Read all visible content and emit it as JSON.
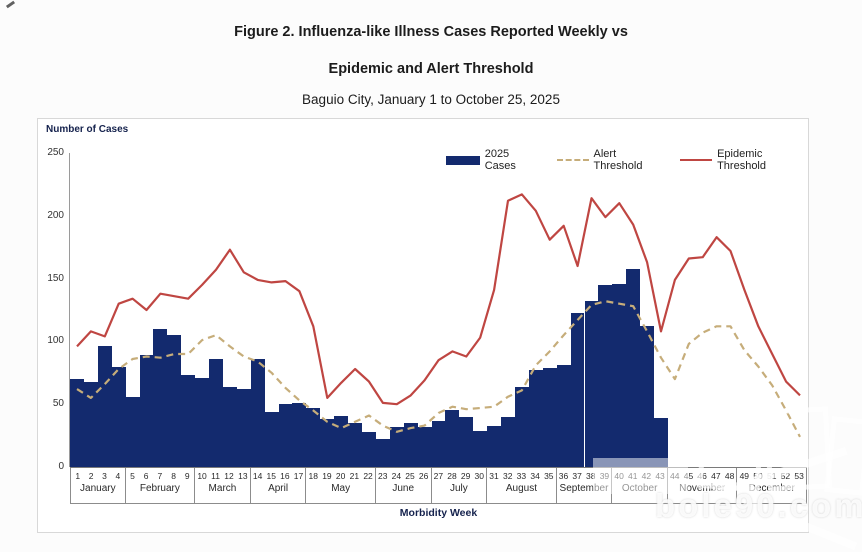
{
  "title": {
    "line1": "Figure 2. Influenza-like Illness Cases Reported Weekly vs",
    "line2": "Epidemic and Alert Threshold",
    "line3": "Baguio City, January 1 to October 25, 2025"
  },
  "y_axis": {
    "label": "Number of Cases",
    "ticks": [
      250,
      200,
      150,
      100,
      50,
      0
    ]
  },
  "x_axis": {
    "label": "Morbidity Week",
    "months": [
      {
        "name": "January",
        "weeks": [
          1,
          2,
          3,
          4
        ]
      },
      {
        "name": "February",
        "weeks": [
          5,
          6,
          7,
          8,
          9
        ]
      },
      {
        "name": "March",
        "weeks": [
          10,
          11,
          12,
          13
        ]
      },
      {
        "name": "April",
        "weeks": [
          14,
          15,
          16,
          17
        ]
      },
      {
        "name": "May",
        "weeks": [
          18,
          19,
          20,
          21,
          22
        ]
      },
      {
        "name": "June",
        "weeks": [
          23,
          24,
          25,
          26
        ]
      },
      {
        "name": "July",
        "weeks": [
          27,
          28,
          29,
          30
        ]
      },
      {
        "name": "August",
        "weeks": [
          31,
          32,
          33,
          34,
          35
        ]
      },
      {
        "name": "September",
        "weeks": [
          36,
          37,
          38,
          39
        ]
      },
      {
        "name": "October",
        "weeks": [
          40,
          41,
          42,
          43
        ]
      },
      {
        "name": "November",
        "weeks": [
          44,
          45,
          46,
          47,
          48
        ]
      },
      {
        "name": "December",
        "weeks": [
          49,
          50,
          51,
          52,
          53
        ]
      }
    ]
  },
  "legend": [
    {
      "label": "2025 Cases",
      "swatch": "bar",
      "color": "#132a6e"
    },
    {
      "label": "Alert Threshold",
      "swatch": "dash",
      "color": "#c6ad7a"
    },
    {
      "label": "Epidemic Threshold",
      "swatch": "line",
      "color": "#bf4642"
    }
  ],
  "watermark": {
    "text": "bole90.com"
  },
  "chart_data": {
    "type": "bar",
    "title": "Figure 2. Influenza-like Illness Cases Reported Weekly vs Epidemic and Alert Threshold — Baguio City, January 1 to October 25, 2025",
    "xlabel": "Morbidity Week",
    "ylabel": "Number of Cases",
    "ylim": [
      0,
      250
    ],
    "x_weeks": 53,
    "grid": false,
    "legend_position": "top-center-inside",
    "series": [
      {
        "name": "2025 Cases",
        "type": "bar",
        "color": "#132a6e",
        "values": [
          70,
          68,
          96,
          80,
          56,
          89,
          110,
          105,
          73,
          71,
          86,
          64,
          62,
          86,
          44,
          50,
          51,
          47,
          38,
          41,
          35,
          28,
          22,
          32,
          35,
          32,
          37,
          45,
          40,
          29,
          33,
          40,
          64,
          77,
          79,
          81,
          123,
          132,
          145,
          146,
          158,
          112,
          39
        ]
      },
      {
        "name": "Alert Threshold",
        "type": "line",
        "dashed": true,
        "color": "#c6ad7a",
        "values": [
          62,
          55,
          66,
          78,
          86,
          88,
          87,
          90,
          90,
          101,
          105,
          96,
          88,
          84,
          75,
          63,
          53,
          45,
          36,
          31,
          36,
          41,
          33,
          28,
          31,
          33,
          43,
          48,
          46,
          47,
          48,
          56,
          61,
          81,
          92,
          105,
          117,
          129,
          132,
          130,
          128,
          108,
          87,
          70,
          98,
          107,
          112,
          112,
          93,
          80,
          65,
          45,
          24
        ]
      },
      {
        "name": "Epidemic Threshold",
        "type": "line",
        "dashed": false,
        "color": "#bf4642",
        "values": [
          96,
          108,
          104,
          130,
          134,
          125,
          138,
          136,
          134,
          145,
          157,
          173,
          155,
          149,
          147,
          148,
          140,
          112,
          55,
          67,
          78,
          68,
          51,
          50,
          57,
          69,
          85,
          92,
          88,
          103,
          141,
          212,
          217,
          204,
          181,
          192,
          160,
          214,
          199,
          210,
          193,
          163,
          108,
          149,
          166,
          167,
          183,
          172,
          141,
          112,
          90,
          68,
          57
        ]
      }
    ]
  }
}
